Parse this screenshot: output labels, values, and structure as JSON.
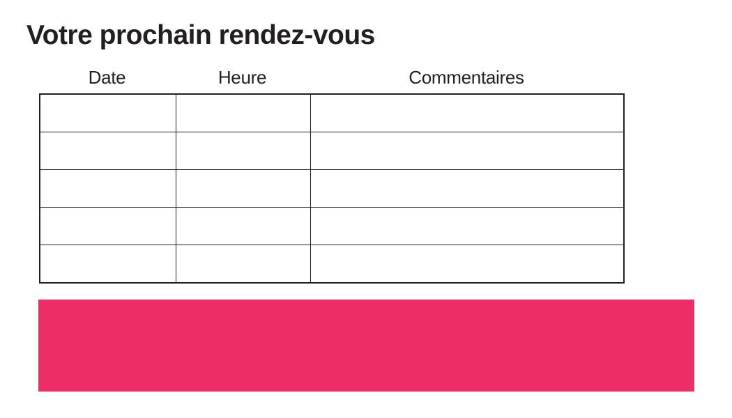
{
  "header": {
    "title": "Votre prochain rendez-vous"
  },
  "appointments_table": {
    "columns": [
      "Date",
      "Heure",
      "Commentaires"
    ],
    "rows": [
      [
        "",
        "",
        ""
      ],
      [
        "",
        "",
        ""
      ],
      [
        "",
        "",
        ""
      ],
      [
        "",
        "",
        ""
      ],
      [
        "",
        "",
        ""
      ]
    ]
  },
  "banner": {
    "color": "#ED2D66",
    "label": ""
  },
  "colors": {
    "background": "#FFFFFF",
    "text": "#231F20",
    "table_border": "#231F20"
  }
}
